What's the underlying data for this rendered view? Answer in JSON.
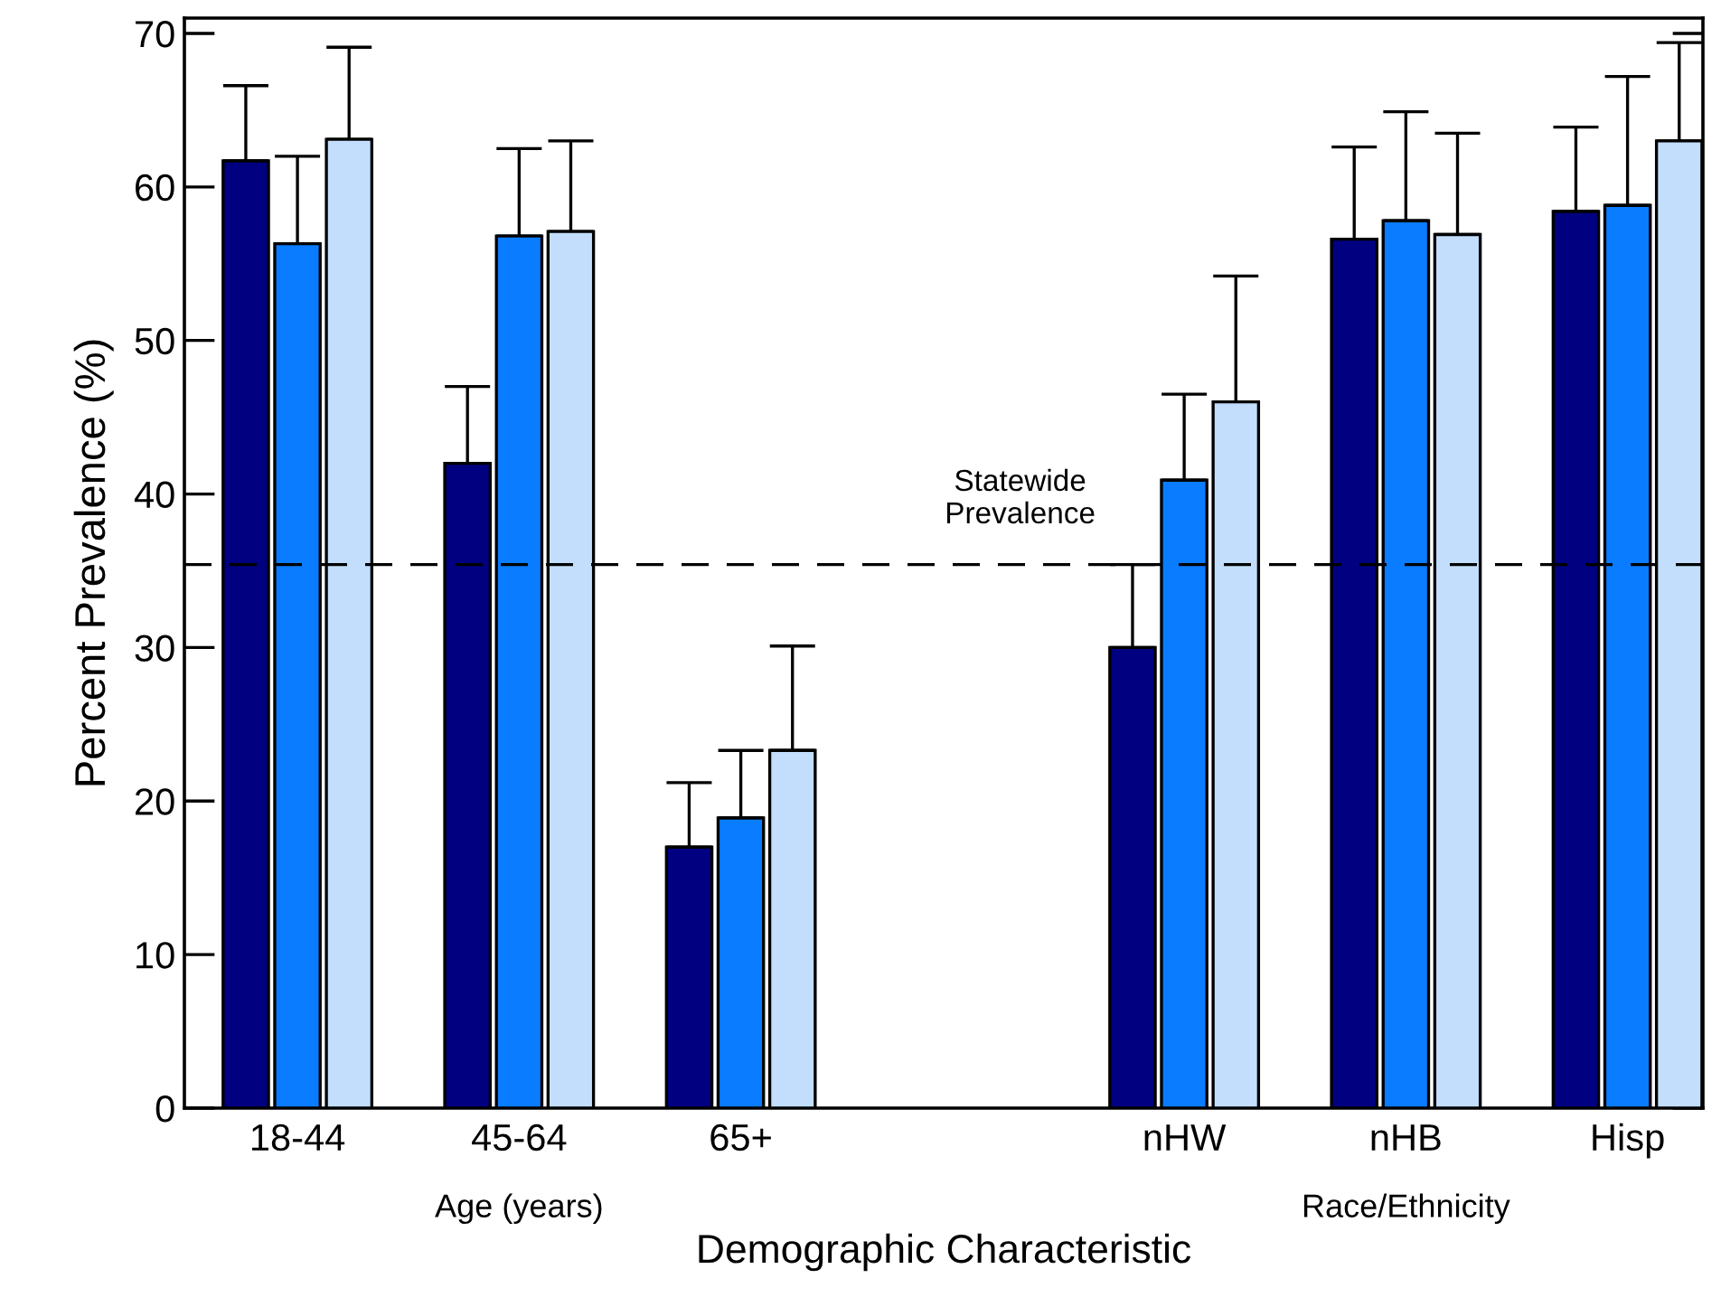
{
  "chart_data": {
    "type": "bar",
    "xlabel": "Demographic Characteristic",
    "ylabel": "Percent Prevalence (%)",
    "categories": [
      "18-44",
      "45-64",
      "65+",
      null,
      "nHW",
      "nHB",
      "Hisp"
    ],
    "series": [
      {
        "color": "#000080",
        "values": [
          61.7,
          42.0,
          17.0,
          null,
          30.0,
          56.6,
          58.4
        ],
        "errors": [
          [
            61.7,
            66.6
          ],
          [
            42.0,
            47.0
          ],
          [
            17.0,
            21.2
          ],
          null,
          [
            30.0,
            35.4
          ],
          [
            56.6,
            62.6
          ],
          [
            58.4,
            63.9
          ]
        ]
      },
      {
        "color": "#0a7cff",
        "values": [
          56.3,
          56.8,
          18.9,
          null,
          40.9,
          57.8,
          58.8
        ],
        "errors": [
          [
            56.3,
            62.0
          ],
          [
            56.8,
            62.5
          ],
          [
            18.9,
            23.3
          ],
          null,
          [
            40.9,
            46.5
          ],
          [
            57.8,
            64.9
          ],
          [
            58.8,
            67.2
          ]
        ]
      },
      {
        "color": "#c2defc",
        "values": [
          63.1,
          57.1,
          23.3,
          null,
          46.0,
          56.9,
          63.0
        ],
        "errors": [
          [
            63.1,
            69.1
          ],
          [
            57.1,
            63.0
          ],
          [
            23.3,
            30.1
          ],
          null,
          [
            46.0,
            54.2
          ],
          [
            56.9,
            63.5
          ],
          [
            63.0,
            69.4
          ]
        ]
      }
    ],
    "ylim": [
      0,
      71
    ],
    "yticks": [
      0,
      10,
      20,
      30,
      40,
      50,
      60,
      70
    ],
    "ref_lines": [
      {
        "axis": "y",
        "value": 35.4,
        "label": "Statewide\nPrevalence",
        "color": "#000000",
        "line_style": "dashed"
      }
    ],
    "annotations": [
      "Age (years)",
      "Race/Ethnicity"
    ],
    "grid": false,
    "legend": false
  }
}
